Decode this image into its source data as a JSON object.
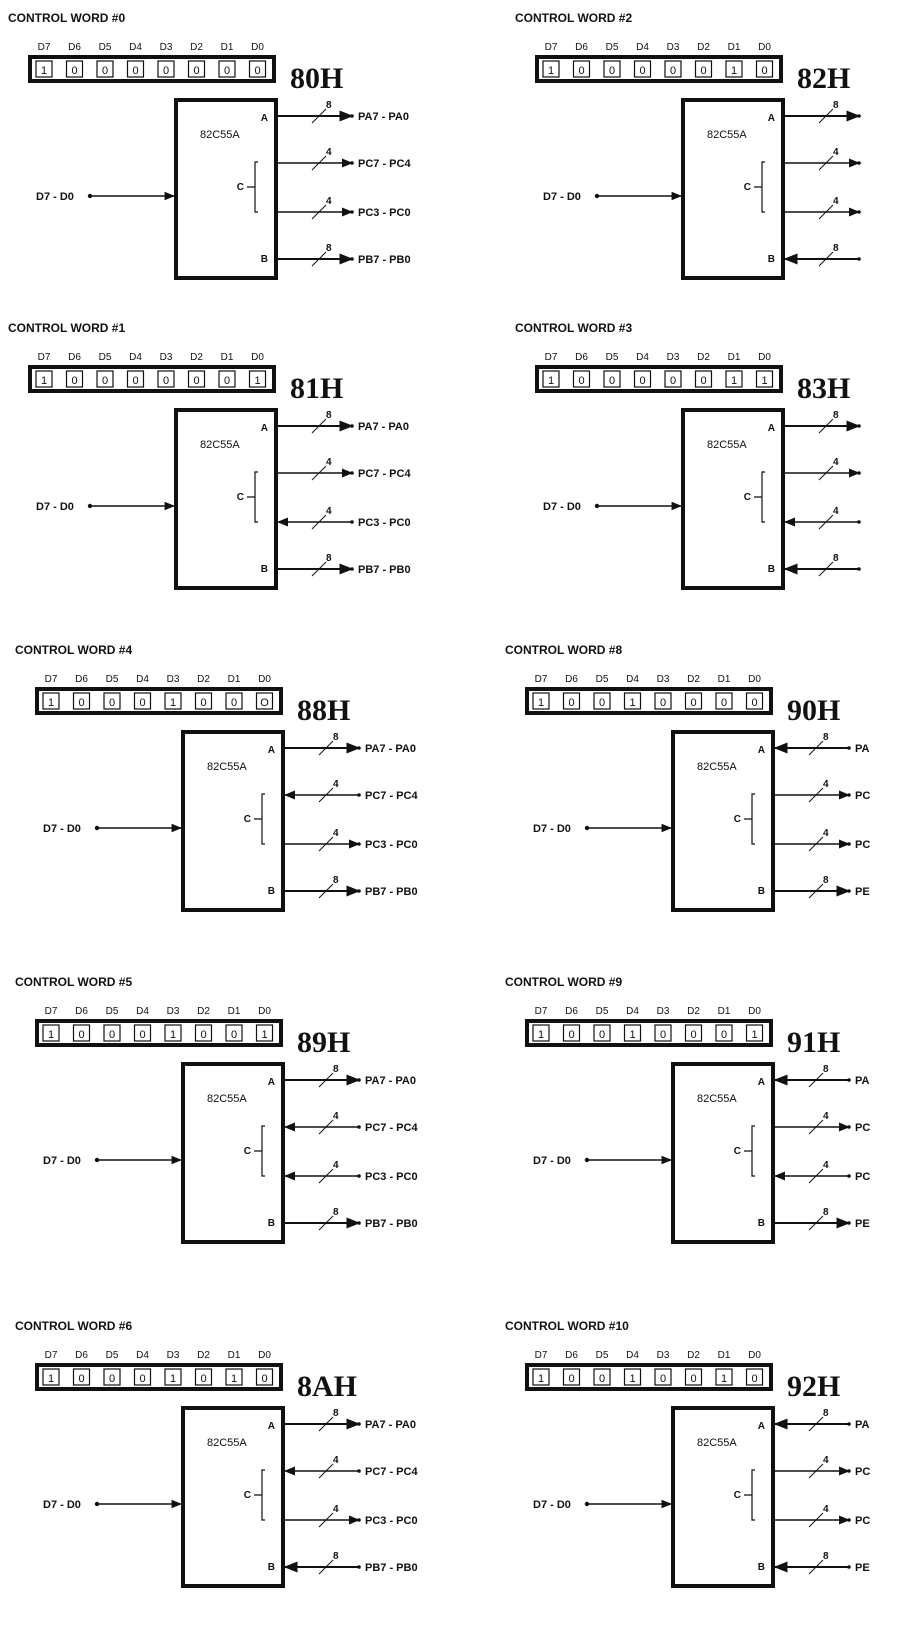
{
  "panels": [
    {
      "title": "CONTROL WORD #0",
      "bit_labels": [
        "D7",
        "D6",
        "D5",
        "D4",
        "D3",
        "D2",
        "D1",
        "D0"
      ],
      "bits": [
        "1",
        "0",
        "0",
        "0",
        "0",
        "0",
        "0",
        "0"
      ],
      "hex": "80H",
      "chip": "82C55A",
      "port_labels": {
        "a": "A",
        "c": "C",
        "b": "B"
      },
      "data_label": "D7 - D0",
      "ports": [
        {
          "label": "PA7 - PA0",
          "width": "8",
          "direction": "out"
        },
        {
          "label": "PC7 - PC4",
          "width": "4",
          "direction": "out"
        },
        {
          "label": "PC3 - PC0",
          "width": "4",
          "direction": "out"
        },
        {
          "label": "PB7 - PB0",
          "width": "8",
          "direction": "out"
        }
      ]
    },
    {
      "title": "CONTROL WORD #1",
      "bit_labels": [
        "D7",
        "D6",
        "D5",
        "D4",
        "D3",
        "D2",
        "D1",
        "D0"
      ],
      "bits": [
        "1",
        "0",
        "0",
        "0",
        "0",
        "0",
        "0",
        "1"
      ],
      "hex": "81H",
      "chip": "82C55A",
      "port_labels": {
        "a": "A",
        "c": "C",
        "b": "B"
      },
      "data_label": "D7 - D0",
      "ports": [
        {
          "label": "PA7 - PA0",
          "width": "8",
          "direction": "out"
        },
        {
          "label": "PC7 - PC4",
          "width": "4",
          "direction": "out"
        },
        {
          "label": "PC3 - PC0",
          "width": "4",
          "direction": "in"
        },
        {
          "label": "PB7 - PB0",
          "width": "8",
          "direction": "out"
        }
      ]
    },
    {
      "title": "CONTROL WORD #4",
      "bit_labels": [
        "D7",
        "D6",
        "D5",
        "D4",
        "D3",
        "D2",
        "D1",
        "D0"
      ],
      "bits": [
        "1",
        "0",
        "0",
        "0",
        "1",
        "0",
        "0",
        "O"
      ],
      "hex": "88H",
      "chip": "82C55A",
      "port_labels": {
        "a": "A",
        "c": "C",
        "b": "B"
      },
      "data_label": "D7 - D0",
      "ports": [
        {
          "label": "PA7 - PA0",
          "width": "8",
          "direction": "out"
        },
        {
          "label": "PC7 - PC4",
          "width": "4",
          "direction": "in"
        },
        {
          "label": "PC3 - PC0",
          "width": "4",
          "direction": "out"
        },
        {
          "label": "PB7 - PB0",
          "width": "8",
          "direction": "out"
        }
      ]
    },
    {
      "title": "CONTROL WORD #5",
      "bit_labels": [
        "D7",
        "D6",
        "D5",
        "D4",
        "D3",
        "D2",
        "D1",
        "D0"
      ],
      "bits": [
        "1",
        "0",
        "0",
        "0",
        "1",
        "0",
        "0",
        "1"
      ],
      "hex": "89H",
      "chip": "82C55A",
      "port_labels": {
        "a": "A",
        "c": "C",
        "b": "B"
      },
      "data_label": "D7 - D0",
      "ports": [
        {
          "label": "PA7 - PA0",
          "width": "8",
          "direction": "out"
        },
        {
          "label": "PC7 - PC4",
          "width": "4",
          "direction": "in"
        },
        {
          "label": "PC3 - PC0",
          "width": "4",
          "direction": "in"
        },
        {
          "label": "PB7 - PB0",
          "width": "8",
          "direction": "out"
        }
      ]
    },
    {
      "title": "CONTROL WORD #6",
      "bit_labels": [
        "D7",
        "D6",
        "D5",
        "D4",
        "D3",
        "D2",
        "D1",
        "D0"
      ],
      "bits": [
        "1",
        "0",
        "0",
        "0",
        "1",
        "0",
        "1",
        "0"
      ],
      "hex": "8AH",
      "chip": "82C55A",
      "port_labels": {
        "a": "A",
        "c": "C",
        "b": "B"
      },
      "data_label": "D7 - D0",
      "ports": [
        {
          "label": "PA7 - PA0",
          "width": "8",
          "direction": "out"
        },
        {
          "label": "PC7 - PC4",
          "width": "4",
          "direction": "in"
        },
        {
          "label": "PC3 - PC0",
          "width": "4",
          "direction": "out"
        },
        {
          "label": "PB7 - PB0",
          "width": "8",
          "direction": "in"
        }
      ]
    },
    {
      "title": "CONTROL WORD #2",
      "bit_labels": [
        "D7",
        "D6",
        "D5",
        "D4",
        "D3",
        "D2",
        "D1",
        "D0"
      ],
      "bits": [
        "1",
        "0",
        "0",
        "0",
        "0",
        "0",
        "1",
        "0"
      ],
      "hex": "82H",
      "chip": "82C55A",
      "port_labels": {
        "a": "A",
        "c": "C",
        "b": "B"
      },
      "data_label": "D7 - D0",
      "ports": [
        {
          "label": "",
          "width": "8",
          "direction": "out"
        },
        {
          "label": "",
          "width": "4",
          "direction": "out"
        },
        {
          "label": "",
          "width": "4",
          "direction": "out"
        },
        {
          "label": "",
          "width": "8",
          "direction": "in"
        }
      ]
    },
    {
      "title": "CONTROL WORD #3",
      "bit_labels": [
        "D7",
        "D6",
        "D5",
        "D4",
        "D3",
        "D2",
        "D1",
        "D0"
      ],
      "bits": [
        "1",
        "0",
        "0",
        "0",
        "0",
        "0",
        "1",
        "1"
      ],
      "hex": "83H",
      "chip": "82C55A",
      "port_labels": {
        "a": "A",
        "c": "C",
        "b": "B"
      },
      "data_label": "D7 - D0",
      "ports": [
        {
          "label": "",
          "width": "8",
          "direction": "out"
        },
        {
          "label": "",
          "width": "4",
          "direction": "out"
        },
        {
          "label": "",
          "width": "4",
          "direction": "in"
        },
        {
          "label": "",
          "width": "8",
          "direction": "in"
        }
      ]
    },
    {
      "title": "CONTROL WORD #8",
      "bit_labels": [
        "D7",
        "D6",
        "D5",
        "D4",
        "D3",
        "D2",
        "D1",
        "D0"
      ],
      "bits": [
        "1",
        "0",
        "0",
        "1",
        "0",
        "0",
        "0",
        "0"
      ],
      "hex": "90H",
      "chip": "82C55A",
      "port_labels": {
        "a": "A",
        "c": "C",
        "b": "B"
      },
      "data_label": "D7 - D0",
      "ports": [
        {
          "label": "PA",
          "width": "8",
          "direction": "in"
        },
        {
          "label": "PC",
          "width": "4",
          "direction": "out"
        },
        {
          "label": "PC",
          "width": "4",
          "direction": "out"
        },
        {
          "label": "PE",
          "width": "8",
          "direction": "out"
        }
      ]
    },
    {
      "title": "CONTROL WORD #9",
      "bit_labels": [
        "D7",
        "D6",
        "D5",
        "D4",
        "D3",
        "D2",
        "D1",
        "D0"
      ],
      "bits": [
        "1",
        "0",
        "0",
        "1",
        "0",
        "0",
        "0",
        "1"
      ],
      "hex": "91H",
      "chip": "82C55A",
      "port_labels": {
        "a": "A",
        "c": "C",
        "b": "B"
      },
      "data_label": "D7 - D0",
      "ports": [
        {
          "label": "PA",
          "width": "8",
          "direction": "in"
        },
        {
          "label": "PC",
          "width": "4",
          "direction": "out"
        },
        {
          "label": "PC",
          "width": "4",
          "direction": "in"
        },
        {
          "label": "PE",
          "width": "8",
          "direction": "out"
        }
      ]
    },
    {
      "title": "CONTROL WORD #10",
      "bit_labels": [
        "D7",
        "D6",
        "D5",
        "D4",
        "D3",
        "D2",
        "D1",
        "D0"
      ],
      "bits": [
        "1",
        "0",
        "0",
        "1",
        "0",
        "0",
        "1",
        "0"
      ],
      "hex": "92H",
      "chip": "82C55A",
      "port_labels": {
        "a": "A",
        "c": "C",
        "b": "B"
      },
      "data_label": "D7 - D0",
      "ports": [
        {
          "label": "PA",
          "width": "8",
          "direction": "in"
        },
        {
          "label": "PC",
          "width": "4",
          "direction": "out"
        },
        {
          "label": "PC",
          "width": "4",
          "direction": "out"
        },
        {
          "label": "PE",
          "width": "8",
          "direction": "in"
        }
      ]
    }
  ]
}
